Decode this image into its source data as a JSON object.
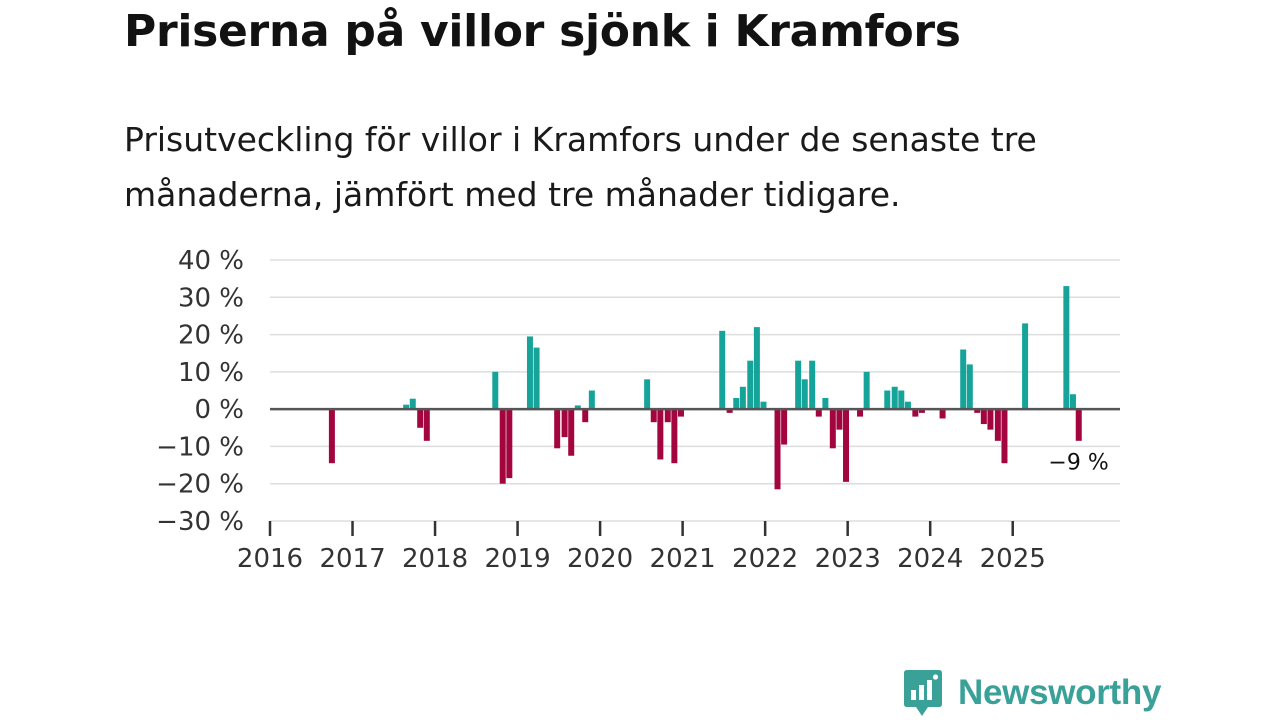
{
  "title": "Priserna på villor sjönk i Kramfors",
  "subtitle": "Prisutveckling för villor i Kramfors under de senaste tre månaderna, jämfört med tre månader tidigare.",
  "brand": {
    "name": "Newsworthy",
    "logo_icon": "newsworthy-logo-icon",
    "color": "#3aa198"
  },
  "colors": {
    "positive": "#16a49a",
    "negative": "#a3063f",
    "zero_line": "#555555",
    "grid": "#dddddd"
  },
  "chart_data": {
    "type": "bar",
    "title": "Priserna på villor sjönk i Kramfors",
    "xlabel": "",
    "ylabel": "",
    "ylim": [
      -30,
      40
    ],
    "yticks": [
      40,
      30,
      20,
      10,
      0,
      -10,
      -20,
      -30
    ],
    "ytick_labels": [
      "40 %",
      "30 %",
      "20 %",
      "10 %",
      "0 %",
      "−10 %",
      "−20 %",
      "−30 %"
    ],
    "xlim": [
      2016,
      2026.3
    ],
    "xtick_labels": [
      "2016",
      "2017",
      "2018",
      "2019",
      "2020",
      "2021",
      "2022",
      "2023",
      "2024",
      "2025"
    ],
    "annotation": {
      "text": "−9 %",
      "x": 2025.8
    },
    "series": [
      {
        "name": "Prisutveckling",
        "points": [
          {
            "x": 2016.75,
            "y": -14.5
          },
          {
            "x": 2017.65,
            "y": 1.2
          },
          {
            "x": 2017.73,
            "y": 2.8
          },
          {
            "x": 2017.82,
            "y": -5
          },
          {
            "x": 2017.9,
            "y": -8.5
          },
          {
            "x": 2018.73,
            "y": 10
          },
          {
            "x": 2018.82,
            "y": -20
          },
          {
            "x": 2018.9,
            "y": -18.5
          },
          {
            "x": 2019.15,
            "y": 19.5
          },
          {
            "x": 2019.23,
            "y": 16.5
          },
          {
            "x": 2019.48,
            "y": -10.5
          },
          {
            "x": 2019.57,
            "y": -7.5
          },
          {
            "x": 2019.65,
            "y": -12.5
          },
          {
            "x": 2019.73,
            "y": 1
          },
          {
            "x": 2019.82,
            "y": -3.5
          },
          {
            "x": 2019.9,
            "y": 5
          },
          {
            "x": 2020.57,
            "y": 8
          },
          {
            "x": 2020.65,
            "y": -3.5
          },
          {
            "x": 2020.73,
            "y": -13.5
          },
          {
            "x": 2020.82,
            "y": -3.5
          },
          {
            "x": 2020.9,
            "y": -14.5
          },
          {
            "x": 2020.98,
            "y": -2
          },
          {
            "x": 2021.48,
            "y": 21
          },
          {
            "x": 2021.57,
            "y": -1
          },
          {
            "x": 2021.65,
            "y": 3
          },
          {
            "x": 2021.73,
            "y": 6
          },
          {
            "x": 2021.82,
            "y": 13
          },
          {
            "x": 2021.9,
            "y": 22
          },
          {
            "x": 2021.98,
            "y": 2
          },
          {
            "x": 2022.15,
            "y": -21.5
          },
          {
            "x": 2022.23,
            "y": -9.5
          },
          {
            "x": 2022.4,
            "y": 13
          },
          {
            "x": 2022.48,
            "y": 8
          },
          {
            "x": 2022.57,
            "y": 13
          },
          {
            "x": 2022.65,
            "y": -2
          },
          {
            "x": 2022.73,
            "y": 3
          },
          {
            "x": 2022.82,
            "y": -10.5
          },
          {
            "x": 2022.9,
            "y": -5.5
          },
          {
            "x": 2022.98,
            "y": -19.5
          },
          {
            "x": 2023.15,
            "y": -2
          },
          {
            "x": 2023.23,
            "y": 10
          },
          {
            "x": 2023.48,
            "y": 5
          },
          {
            "x": 2023.57,
            "y": 6
          },
          {
            "x": 2023.65,
            "y": 5
          },
          {
            "x": 2023.73,
            "y": 2
          },
          {
            "x": 2023.82,
            "y": -2
          },
          {
            "x": 2023.9,
            "y": -1
          },
          {
            "x": 2024.15,
            "y": -2.5
          },
          {
            "x": 2024.4,
            "y": 16
          },
          {
            "x": 2024.48,
            "y": 12
          },
          {
            "x": 2024.57,
            "y": -1
          },
          {
            "x": 2024.65,
            "y": -4
          },
          {
            "x": 2024.73,
            "y": -5.5
          },
          {
            "x": 2024.82,
            "y": -8.5
          },
          {
            "x": 2024.9,
            "y": -14.5
          },
          {
            "x": 2025.15,
            "y": 23
          },
          {
            "x": 2025.65,
            "y": 33
          },
          {
            "x": 2025.73,
            "y": 4
          },
          {
            "x": 2025.8,
            "y": -8.5
          }
        ]
      }
    ]
  }
}
